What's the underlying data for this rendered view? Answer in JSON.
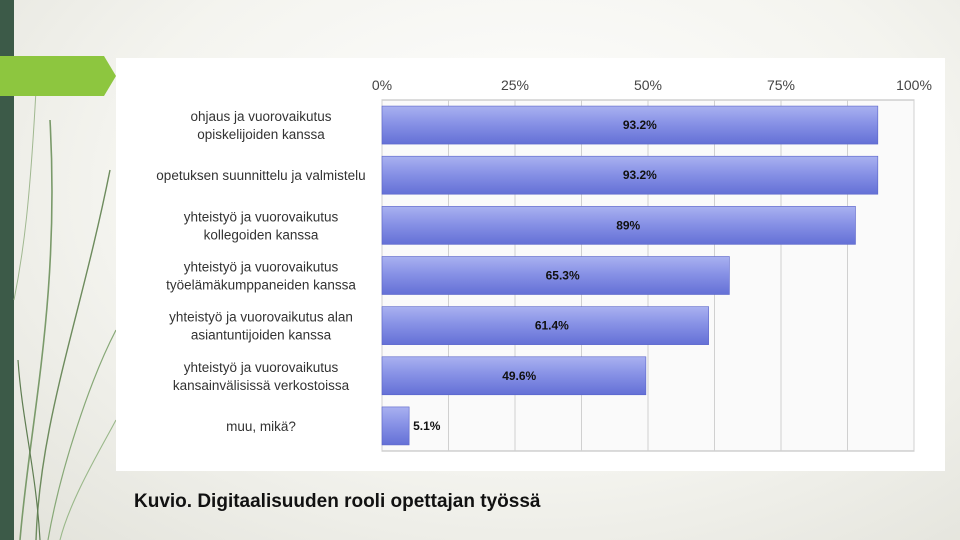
{
  "slide": {
    "caption": "Kuvio. Digitaalisuuden rooli opettajan työssä",
    "accent_color": "#8dc63f",
    "stripe_color": "#3c5a48"
  },
  "chart_data": {
    "type": "bar",
    "orientation": "horizontal",
    "categories": [
      [
        "ohjaus ja vuorovaikutus",
        "opiskelijoiden kanssa"
      ],
      [
        "opetuksen suunnittelu ja valmistelu"
      ],
      [
        "yhteistyö ja vuorovaikutus",
        "kollegoiden kanssa"
      ],
      [
        "yhteistyö ja vuorovaikutus",
        "työelämäkumppaneiden kanssa"
      ],
      [
        "yhteistyö ja vuorovaikutus alan",
        "asiantuntijoiden kanssa"
      ],
      [
        "yhteistyö ja vuorovaikutus",
        "kansainvälisissä verkostoissa"
      ],
      [
        "muu, mikä?"
      ]
    ],
    "values": [
      93.2,
      93.2,
      89,
      65.3,
      61.4,
      49.6,
      5.1
    ],
    "value_labels": [
      "93.2%",
      "93.2%",
      "89%",
      "65.3%",
      "61.4%",
      "49.6%",
      "5.1%"
    ],
    "xticks": [
      "0%",
      "25%",
      "50%",
      "75%",
      "100%"
    ],
    "xlim": [
      0,
      100
    ],
    "grid": true,
    "bar_color": "#7b86e2",
    "title": "",
    "xlabel": "",
    "ylabel": ""
  }
}
